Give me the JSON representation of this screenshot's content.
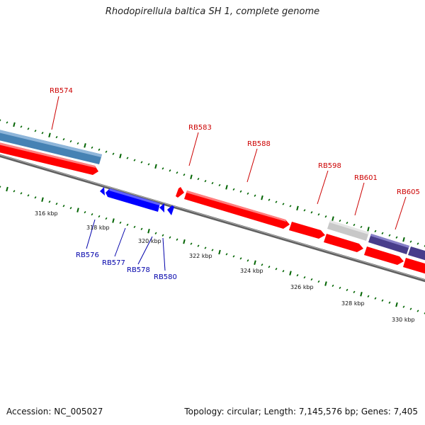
{
  "title": "Rhodopirellula baltica SH 1, complete genome",
  "footer": {
    "accession": "Accession: NC_005027",
    "topology": "Topology: circular; Length: 7,145,576 bp; Genes: 7,405"
  },
  "colors": {
    "forward_gene": "#ff0000",
    "reverse_gene": "#0000ff",
    "forward_label": "#cc0000",
    "reverse_label": "#0000aa",
    "steelblue_feature": "#4682b4",
    "grey_feature": "#c8c8c8",
    "purple_feature": "#483d8b",
    "backbone": "#808080",
    "scale_ticks": "#006400"
  },
  "tick_labels": [
    "316 kbp",
    "318 kbp",
    "320 kbp",
    "322 kbp",
    "324 kbp",
    "326 kbp",
    "328 kbp",
    "330 kbp"
  ],
  "gene_labels": {
    "forward": [
      "RB574",
      "RB583",
      "RB588",
      "RB598",
      "RB601",
      "RB605"
    ],
    "reverse": [
      "RB576",
      "RB577",
      "RB578",
      "RB580"
    ]
  }
}
